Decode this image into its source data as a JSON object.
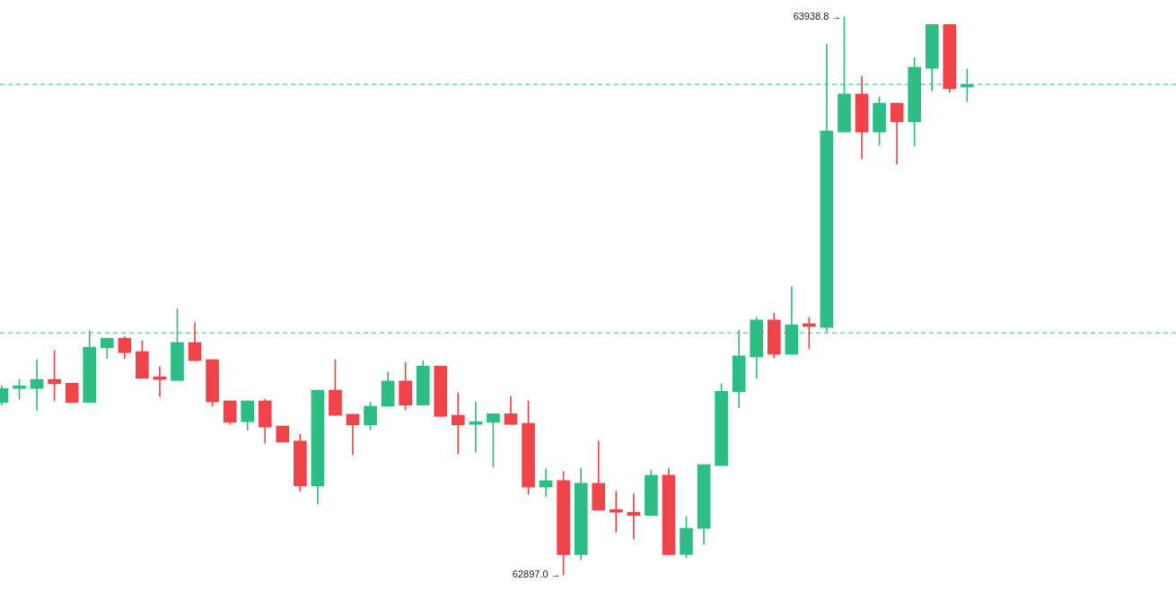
{
  "chart_data": {
    "type": "candlestick",
    "categories": [
      null,
      null,
      null,
      null,
      null,
      null,
      null,
      null,
      null,
      null,
      null,
      null,
      null,
      null,
      null,
      null,
      null,
      null,
      null,
      null,
      null,
      null,
      null,
      null,
      null,
      null,
      null,
      null,
      null,
      null,
      null,
      null,
      null,
      null,
      null,
      null,
      null,
      null,
      null,
      null,
      null,
      null,
      null,
      null,
      null,
      null,
      null,
      null,
      null,
      null,
      null,
      null,
      null,
      null,
      null,
      null
    ],
    "ohlc": [
      [
        63219,
        63250,
        63214,
        63245
      ],
      [
        63245,
        63262,
        63225,
        63247
      ],
      [
        63245,
        63299,
        63205,
        63262
      ],
      [
        63262,
        63316,
        63222,
        63254
      ],
      [
        63255,
        63255,
        63219,
        63219
      ],
      [
        63219,
        63353,
        63219,
        63322
      ],
      [
        63321,
        63339,
        63301,
        63339
      ],
      [
        63339,
        63342,
        63301,
        63312
      ],
      [
        63314,
        63334,
        63264,
        63264
      ],
      [
        63265,
        63286,
        63230,
        63262
      ],
      [
        63260,
        63394,
        63260,
        63331
      ],
      [
        63331,
        63368,
        63297,
        63297
      ],
      [
        63299,
        63299,
        63212,
        63220
      ],
      [
        63222,
        63222,
        63178,
        63182
      ],
      [
        63183,
        63222,
        63167,
        63222
      ],
      [
        63222,
        63225,
        63143,
        63173
      ],
      [
        63175,
        63175,
        63145,
        63145
      ],
      [
        63147,
        63160,
        63053,
        63063
      ],
      [
        63063,
        63242,
        63029,
        63242
      ],
      [
        63242,
        63299,
        63195,
        63195
      ],
      [
        63197,
        63197,
        63121,
        63177
      ],
      [
        63177,
        63220,
        63168,
        63212
      ],
      [
        63212,
        63276,
        63212,
        63259
      ],
      [
        63259,
        63294,
        63205,
        63214
      ],
      [
        63214,
        63297,
        63214,
        63287
      ],
      [
        63287,
        63287,
        63193,
        63193
      ],
      [
        63195,
        63237,
        63123,
        63177
      ],
      [
        63178,
        63220,
        63126,
        63183
      ],
      [
        63182,
        63198,
        63098,
        63198
      ],
      [
        63198,
        63230,
        63178,
        63178
      ],
      [
        63180,
        63222,
        63048,
        63061
      ],
      [
        63061,
        63095,
        63043,
        63073
      ],
      [
        63073,
        63090,
        62897.0,
        62935
      ],
      [
        62935,
        63096,
        62925,
        63068
      ],
      [
        63068,
        63147,
        63018,
        63018
      ],
      [
        63018,
        63053,
        62977,
        63014
      ],
      [
        63014,
        63048,
        62964,
        63008
      ],
      [
        63008,
        63093,
        63008,
        63083
      ],
      [
        63083,
        63096,
        62935,
        62935
      ],
      [
        62935,
        63006,
        62929,
        62984
      ],
      [
        62984,
        63103,
        62954,
        63103
      ],
      [
        63101,
        63254,
        63101,
        63240
      ],
      [
        63239,
        63354,
        63209,
        63306
      ],
      [
        63304,
        63378,
        63264,
        63373
      ],
      [
        63373,
        63386,
        63302,
        63309
      ],
      [
        63309,
        63435,
        63309,
        63364
      ],
      [
        63364,
        63378,
        63319,
        63361
      ],
      [
        63359,
        63888,
        63351,
        63726
      ],
      [
        63724,
        63938.8,
        63724,
        63795
      ],
      [
        63795,
        63828,
        63674,
        63724
      ],
      [
        63724,
        63790,
        63699,
        63778
      ],
      [
        63778,
        63778,
        63664,
        63743
      ],
      [
        63743,
        63863,
        63698,
        63845
      ],
      [
        63843,
        63925,
        63801,
        63925
      ],
      [
        63925,
        63925,
        63798,
        63805
      ],
      [
        63808,
        63842,
        63781,
        63811
      ]
    ],
    "colors": [
      "#2ebd85",
      "#2ebd85",
      "#2ebd85",
      "#ef454a",
      "#ef454a",
      "#2ebd85",
      "#2ebd85",
      "#ef454a",
      "#ef454a",
      "#ef454a",
      "#2ebd85",
      "#ef454a",
      "#ef454a",
      "#ef454a",
      "#2ebd85",
      "#ef454a",
      "#ef454a",
      "#ef454a",
      "#2ebd85",
      "#ef454a",
      "#ef454a",
      "#2ebd85",
      "#2ebd85",
      "#ef454a",
      "#2ebd85",
      "#ef454a",
      "#ef454a",
      "#2ebd85",
      "#2ebd85",
      "#ef454a",
      "#ef454a",
      "#2ebd85",
      "#ef454a",
      "#2ebd85",
      "#ef454a",
      "#ef454a",
      "#ef454a",
      "#2ebd85",
      "#ef454a",
      "#2ebd85",
      "#2ebd85",
      "#2ebd85",
      "#2ebd85",
      "#2ebd85",
      "#ef454a",
      "#2ebd85",
      "#ef454a",
      "#2ebd85",
      "#2ebd85",
      "#ef454a",
      "#2ebd85",
      "#ef454a",
      "#2ebd85",
      "#2ebd85",
      "#ef454a",
      "#2ebd85"
    ],
    "ref_lines": [
      {
        "axis": "y",
        "value": 63813,
        "color": "#2ebd85",
        "line_style": "dashed"
      },
      {
        "axis": "y",
        "value": 63349,
        "color": "#2ebd85",
        "line_style": "dashed"
      }
    ],
    "annotations": [
      "63938.8 →",
      "62897.0 →"
    ]
  }
}
